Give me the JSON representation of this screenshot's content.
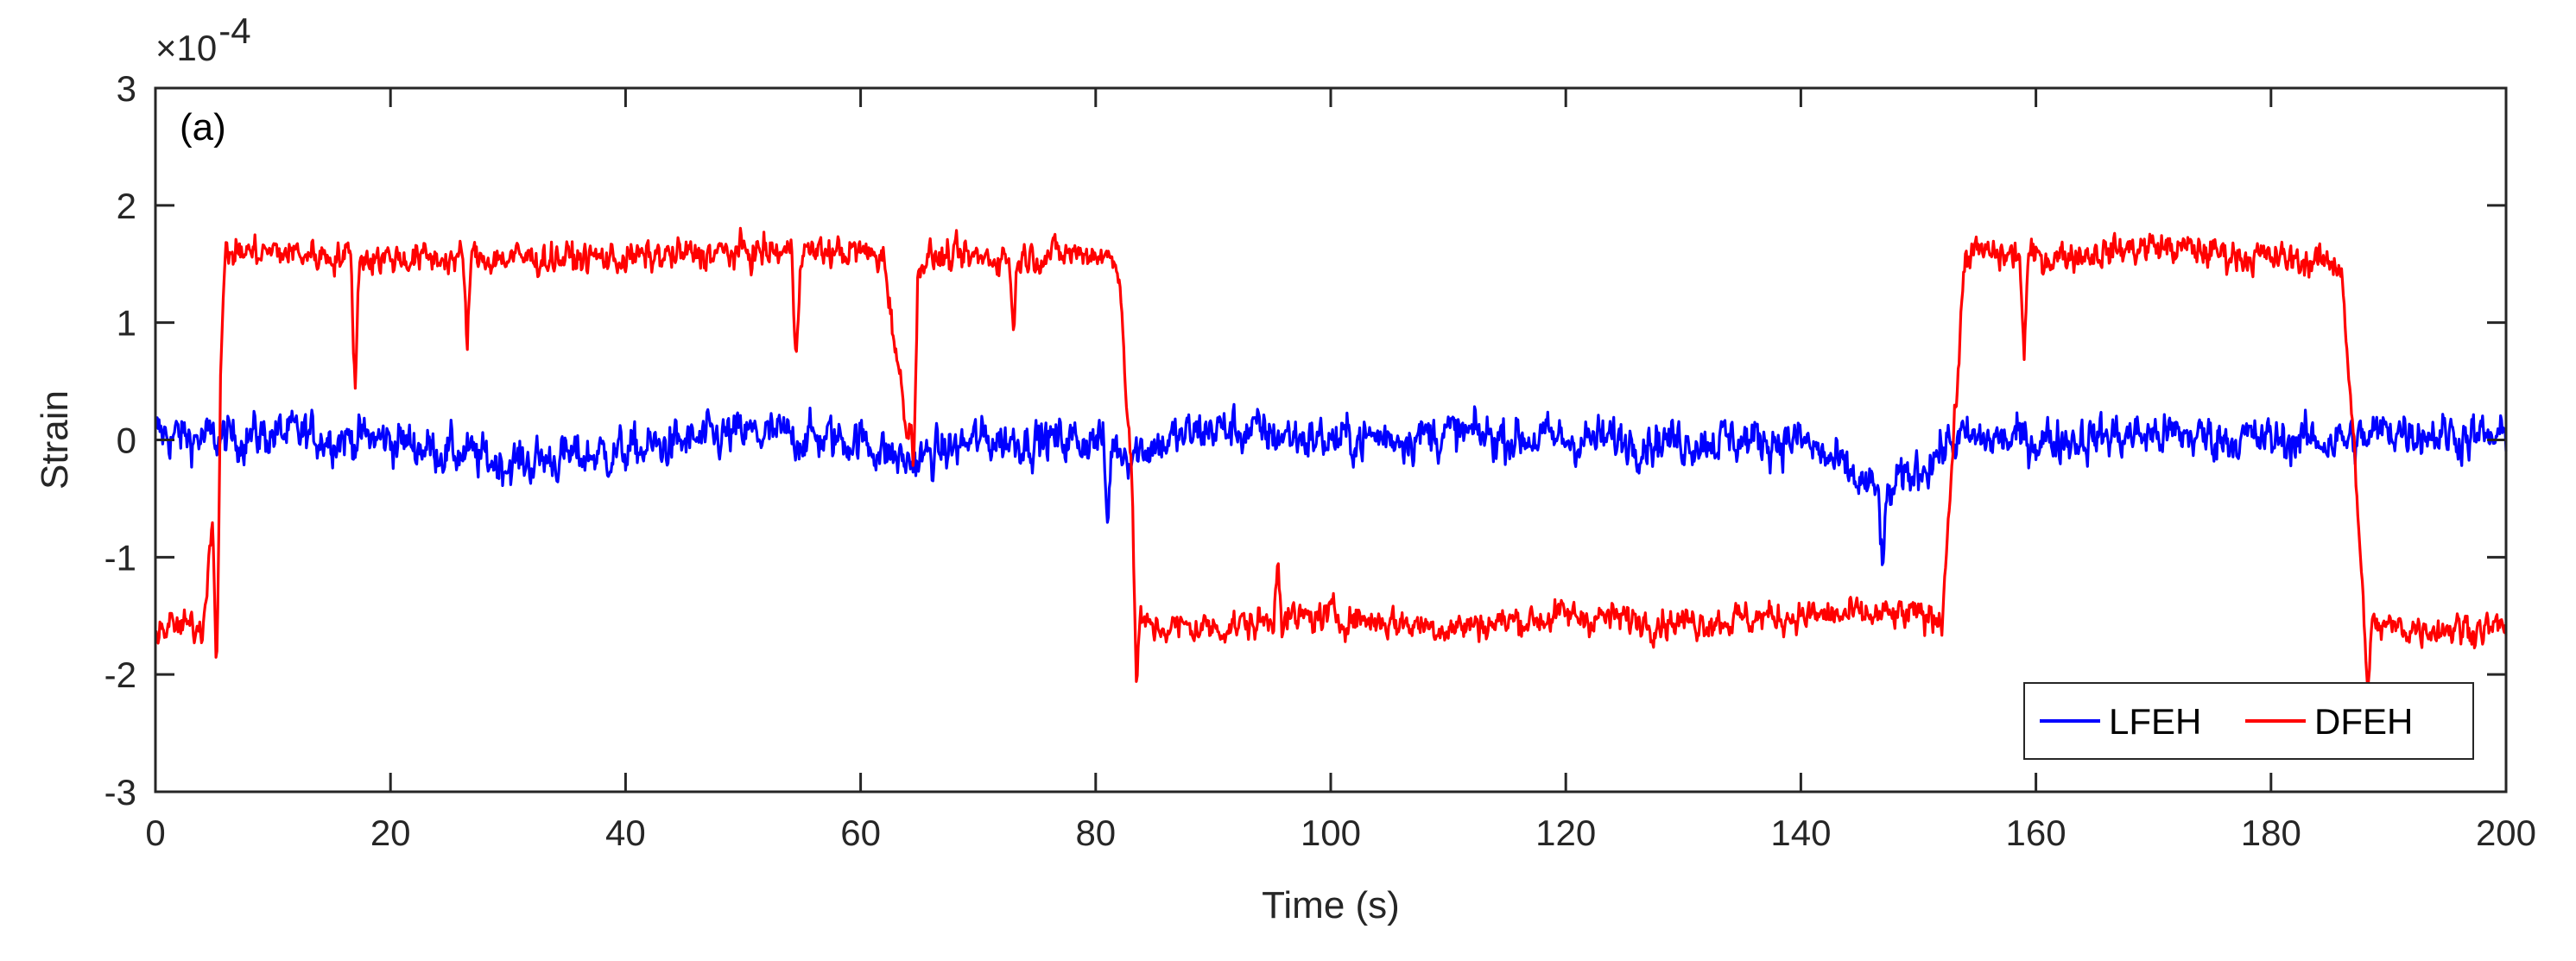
{
  "chart_data": {
    "type": "line",
    "panel_label": "(a)",
    "xlabel": "Time (s)",
    "ylabel": "Strain",
    "exponent_label": "×10",
    "exponent_power": "-4",
    "xlim": [
      0,
      200
    ],
    "ylim": [
      -3,
      3
    ],
    "y_scale_multiplier": 0.0001,
    "x_ticks": [
      0,
      20,
      40,
      60,
      80,
      100,
      120,
      140,
      160,
      180,
      200
    ],
    "x_tick_labels": [
      "0",
      "20",
      "40",
      "60",
      "80",
      "100",
      "120",
      "140",
      "160",
      "180",
      "200"
    ],
    "y_ticks": [
      -3,
      -2,
      -1,
      0,
      1,
      2,
      3
    ],
    "y_tick_labels": [
      "-3",
      "-2",
      "-1",
      "0",
      "1",
      "2",
      "3"
    ],
    "grid": false,
    "legend": {
      "placement": "bottom-right",
      "orientation": "horizontal"
    },
    "series": [
      {
        "name": "LFEH",
        "color": "#0000ff",
        "noise_amplitude": 0.28,
        "x": [
          0,
          5,
          10,
          20,
          30,
          40,
          50,
          60,
          64,
          70,
          80,
          83,
          90,
          100,
          110,
          120,
          130,
          140,
          147,
          153,
          160,
          170,
          180,
          188,
          190,
          200
        ],
        "y": [
          0.05,
          0.0,
          0.05,
          0.0,
          -0.2,
          -0.1,
          0.05,
          0.0,
          -0.2,
          0.0,
          0.0,
          -0.1,
          0.1,
          0.0,
          0.05,
          0.0,
          0.0,
          0.0,
          -0.5,
          0.0,
          0.0,
          0.05,
          0.0,
          0.0,
          0.1,
          0.0
        ]
      },
      {
        "name": "DFEH",
        "color": "#ff0000",
        "noise_amplitude": 0.2,
        "x": [
          0,
          4,
          5,
          6,
          10,
          20,
          30,
          40,
          50,
          60,
          62,
          64,
          65,
          70,
          80,
          82,
          83,
          84,
          90,
          100,
          110,
          120,
          130,
          140,
          150,
          152,
          153,
          154,
          160,
          170,
          180,
          186,
          187,
          188,
          190,
          200
        ],
        "y": [
          -1.6,
          -1.6,
          -0.5,
          1.6,
          1.6,
          1.55,
          1.55,
          1.55,
          1.6,
          1.6,
          1.55,
          0.0,
          1.55,
          1.55,
          1.6,
          1.5,
          -0.3,
          -1.6,
          -1.6,
          -1.5,
          -1.6,
          -1.5,
          -1.55,
          -1.5,
          -1.5,
          -1.5,
          0.0,
          1.6,
          1.55,
          1.65,
          1.55,
          1.5,
          0.0,
          -1.6,
          -1.6,
          -1.6
        ]
      }
    ],
    "dips": [
      {
        "series": "DFEH",
        "x": 17,
        "y": 0.4
      },
      {
        "series": "DFEH",
        "x": 26.5,
        "y": 0.8
      },
      {
        "series": "DFEH",
        "x": 54.5,
        "y": 0.65
      },
      {
        "series": "DFEH",
        "x": 64.5,
        "y": -0.2
      },
      {
        "series": "DFEH",
        "x": 73,
        "y": 0.9
      },
      {
        "series": "DFEH",
        "x": 159,
        "y": 0.7
      },
      {
        "series": "DFEH",
        "x": 83.5,
        "y": -2.2
      },
      {
        "series": "DFEH",
        "x": 5.2,
        "y": -1.95
      },
      {
        "series": "DFEH",
        "x": 188.2,
        "y": -2.1
      },
      {
        "series": "DFEH",
        "x": 95.5,
        "y": -0.9
      },
      {
        "series": "LFEH",
        "x": 147,
        "y": -1.15
      },
      {
        "series": "LFEH",
        "x": 81,
        "y": -0.75
      }
    ]
  }
}
